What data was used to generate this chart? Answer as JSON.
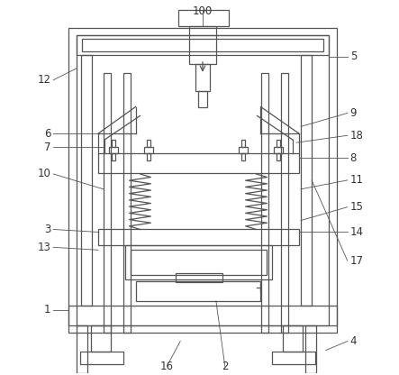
{
  "background_color": "#ffffff",
  "line_color": "#555555",
  "label_color": "#333333",
  "label_fontsize": 8.5,
  "fig_w": 4.43,
  "fig_h": 4.16,
  "dpi": 100
}
